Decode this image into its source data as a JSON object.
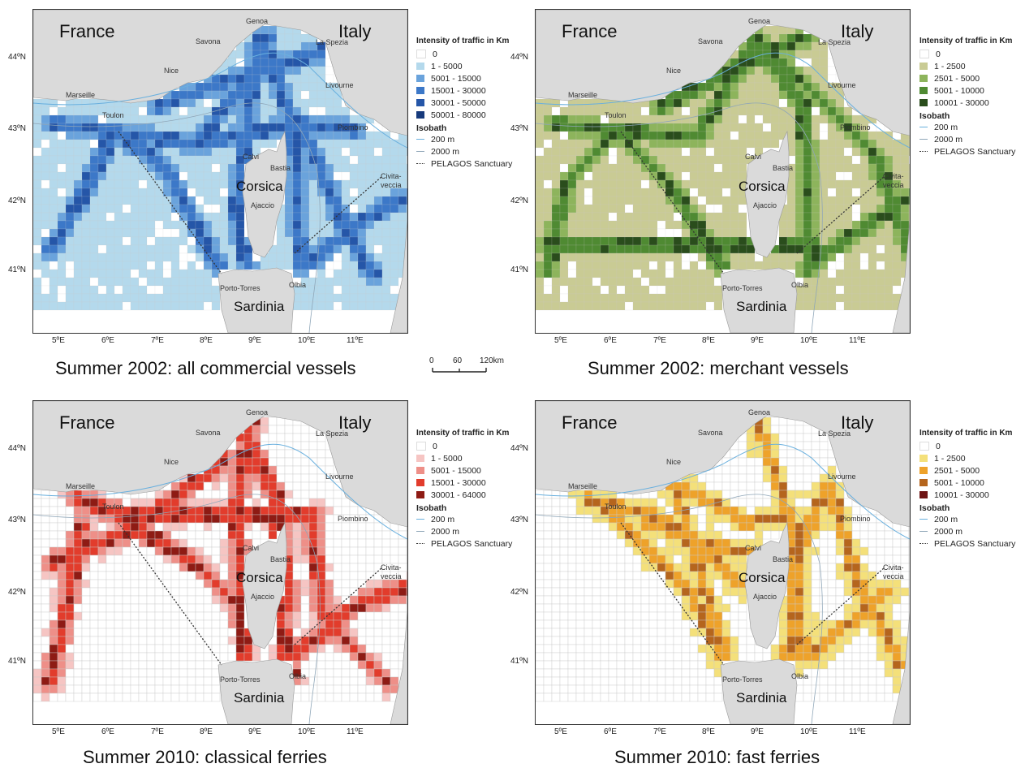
{
  "panels": [
    {
      "id": "p1",
      "caption": "Summer 2002: all commercial vessels",
      "legend_title": "Intensity of traffic in Km",
      "classes": [
        {
          "label": "0",
          "color": "#ffffff"
        },
        {
          "label": "1 - 5000",
          "color": "#b4d9ec"
        },
        {
          "label": "5001 - 15000",
          "color": "#6aa3dc"
        },
        {
          "label": "15001 - 30000",
          "color": "#3c78c8"
        },
        {
          "label": "30001 - 50000",
          "color": "#2556a8"
        },
        {
          "label": "50001 - 80000",
          "color": "#173a7c"
        }
      ],
      "background_class": 1,
      "route_class": 3
    },
    {
      "id": "p2",
      "caption": "Summer 2002: merchant vessels",
      "legend_title": "Intensity of traffic in Km",
      "classes": [
        {
          "label": "0",
          "color": "#ffffff"
        },
        {
          "label": "1 - 2500",
          "color": "#c9cb94"
        },
        {
          "label": "2501 - 5000",
          "color": "#8db45c"
        },
        {
          "label": "5001 - 10000",
          "color": "#4f8a32"
        },
        {
          "label": "10001 - 30000",
          "color": "#2a4d1c"
        }
      ],
      "background_class": 1,
      "route_class": 3
    },
    {
      "id": "p3",
      "caption": "Summer 2010: classical ferries",
      "legend_title": "Intensity of traffic in Km",
      "classes": [
        {
          "label": "0",
          "color": "#ffffff"
        },
        {
          "label": "1 - 5000",
          "color": "#f6c5c3"
        },
        {
          "label": "5001 - 15000",
          "color": "#ee8f88"
        },
        {
          "label": "15001 - 30000",
          "color": "#e23c2c"
        },
        {
          "label": "30001 - 64000",
          "color": "#8e1b14"
        }
      ],
      "background_class": 0,
      "route_class": 3
    },
    {
      "id": "p4",
      "caption": "Summer 2010: fast ferries",
      "legend_title": "Intensity of traffic in Km",
      "classes": [
        {
          "label": "0",
          "color": "#ffffff"
        },
        {
          "label": "1 - 2500",
          "color": "#f4e07a"
        },
        {
          "label": "2501 - 5000",
          "color": "#eea22a"
        },
        {
          "label": "5001 - 10000",
          "color": "#b5651d"
        },
        {
          "label": "10001 - 30000",
          "color": "#6e1414"
        }
      ],
      "background_class": 0,
      "route_class": 2
    }
  ],
  "isobath_title": "Isobath",
  "isobath_200": "200 m",
  "isobath_2000": "2000 m",
  "sanctuary": "PELAGOS Sanctuary",
  "labels": {
    "france": "France",
    "italy": "Italy",
    "corsica": "Corsica",
    "sardinia": "Sardinia",
    "genoa": "Genoa",
    "savona": "Savona",
    "la_spezia": "La Spezia",
    "nice": "Nice",
    "livourne": "Livourne",
    "marseille": "Marseille",
    "toulon": "Toulon",
    "piombino": "Piombino",
    "calvi": "Calvi",
    "bastia": "Bastia",
    "civitavecchia_1": "Civita-",
    "civitavecchia_2": "veccia",
    "ajaccio": "Ajaccio",
    "porto_torres": "Porto-Torres",
    "olbia": "Olbia"
  },
  "lat_ticks": [
    "44ºN",
    "43ºN",
    "42ºN",
    "41ºN"
  ],
  "lon_ticks": [
    "5ºE",
    "6ºE",
    "7ºE",
    "8ºE",
    "9ºE",
    "10ºE",
    "11ºE"
  ],
  "scale": {
    "t0": "0",
    "t60": "60",
    "t120": "120km"
  },
  "colors": {
    "land": "#dadada",
    "isobath": "#6ab0de",
    "grid": "#c8c8c8",
    "sanctuary": "#333333"
  }
}
